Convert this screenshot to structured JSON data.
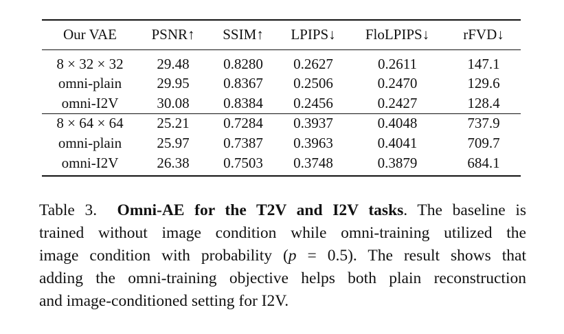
{
  "table": {
    "headers": [
      "Our VAE",
      "PSNR↑",
      "SSIM↑",
      "LPIPS↓",
      "FloLPIPS↓",
      "rFVD↓"
    ],
    "groups": [
      {
        "rows": [
          [
            "8 × 32 × 32",
            "29.48",
            "0.8280",
            "0.2627",
            "0.2611",
            "147.1"
          ],
          [
            "omni-plain",
            "29.95",
            "0.8367",
            "0.2506",
            "0.2470",
            "129.6"
          ],
          [
            "omni-I2V",
            "30.08",
            "0.8384",
            "0.2456",
            "0.2427",
            "128.4"
          ]
        ]
      },
      {
        "rows": [
          [
            "8 × 64 × 64",
            "25.21",
            "0.7284",
            "0.3937",
            "0.4048",
            "737.9"
          ],
          [
            "omni-plain",
            "25.97",
            "0.7387",
            "0.3963",
            "0.4041",
            "709.7"
          ],
          [
            "omni-I2V",
            "26.38",
            "0.7503",
            "0.3748",
            "0.3879",
            "684.1"
          ]
        ]
      }
    ]
  },
  "caption": {
    "label": "Table 3.",
    "title": "Omni-AE for the T2V and I2V tasks",
    "line1_tail": ". The baseline is",
    "line2": "trained without image condition while omni-training utilized the",
    "line3_pre": "image condition with probability (",
    "line3_math": "p",
    "line3_eq": " = 0.5",
    "line3_post": "). The result shows that",
    "line4": "adding the omni-training objective helps both plain reconstruction",
    "line5": "and image-conditioned setting for I2V."
  }
}
